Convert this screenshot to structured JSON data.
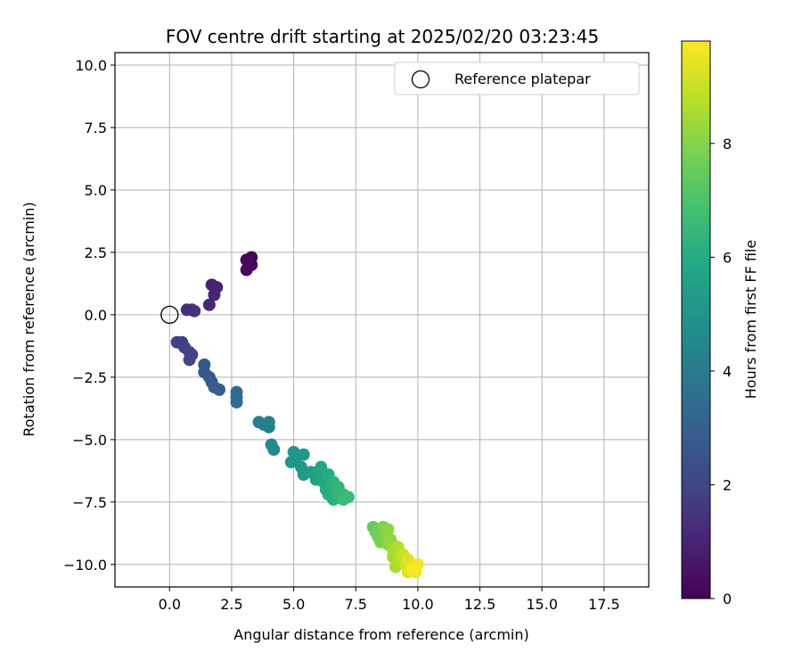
{
  "chart_data": {
    "type": "scatter",
    "title": "FOV centre drift starting at 2025/02/20 03:23:45",
    "xlabel": "Angular distance from reference (arcmin)",
    "ylabel": "Rotation from reference (arcmin)",
    "xlim": [
      -2.2,
      19.3
    ],
    "ylim": [
      -10.9,
      10.5
    ],
    "xticks": [
      0.0,
      2.5,
      5.0,
      7.5,
      10.0,
      12.5,
      15.0,
      17.5
    ],
    "xtick_labels": [
      "0.0",
      "2.5",
      "5.0",
      "7.5",
      "10.0",
      "12.5",
      "15.0",
      "17.5"
    ],
    "yticks": [
      10.0,
      7.5,
      5.0,
      2.5,
      0.0,
      -2.5,
      -5.0,
      -7.5,
      -10.0
    ],
    "ytick_labels": [
      "10.0",
      "7.5",
      "5.0",
      "2.5",
      "0.0",
      "−2.5",
      "−5.0",
      "−7.5",
      "−10.0"
    ],
    "grid": true,
    "legend": {
      "position": "top-right",
      "entries": [
        "Reference platepar"
      ]
    },
    "reference_point": {
      "x": 0.0,
      "y": 0.0
    },
    "colorbar": {
      "label": "Hours from first FF file",
      "colormap": "viridis",
      "range": [
        0,
        9.8
      ],
      "ticks": [
        0,
        2,
        4,
        6,
        8
      ],
      "tick_labels": [
        "0",
        "2",
        "4",
        "6",
        "8"
      ]
    },
    "points": [
      {
        "x": 3.1,
        "y": 2.2,
        "t": 0.1
      },
      {
        "x": 3.3,
        "y": 2.3,
        "t": 0.15
      },
      {
        "x": 3.3,
        "y": 2.0,
        "t": 0.2
      },
      {
        "x": 3.1,
        "y": 1.8,
        "t": 0.25
      },
      {
        "x": 3.2,
        "y": 2.1,
        "t": 0.3
      },
      {
        "x": 1.7,
        "y": 1.2,
        "t": 0.9
      },
      {
        "x": 1.9,
        "y": 1.1,
        "t": 0.95
      },
      {
        "x": 1.8,
        "y": 0.8,
        "t": 1.0
      },
      {
        "x": 1.6,
        "y": 0.4,
        "t": 1.05
      },
      {
        "x": 0.7,
        "y": 0.2,
        "t": 1.3
      },
      {
        "x": 0.9,
        "y": 0.2,
        "t": 1.35
      },
      {
        "x": 1.0,
        "y": 0.15,
        "t": 1.4
      },
      {
        "x": 0.3,
        "y": -1.1,
        "t": 1.8
      },
      {
        "x": 0.5,
        "y": -1.1,
        "t": 1.85
      },
      {
        "x": 0.6,
        "y": -1.3,
        "t": 1.9
      },
      {
        "x": 0.8,
        "y": -1.5,
        "t": 1.95
      },
      {
        "x": 0.9,
        "y": -1.6,
        "t": 2.0
      },
      {
        "x": 0.8,
        "y": -1.8,
        "t": 2.05
      },
      {
        "x": 1.4,
        "y": -2.0,
        "t": 2.6
      },
      {
        "x": 1.4,
        "y": -2.3,
        "t": 2.7
      },
      {
        "x": 1.6,
        "y": -2.5,
        "t": 2.75
      },
      {
        "x": 1.7,
        "y": -2.7,
        "t": 2.8
      },
      {
        "x": 1.8,
        "y": -2.9,
        "t": 2.85
      },
      {
        "x": 2.0,
        "y": -3.0,
        "t": 2.9
      },
      {
        "x": 2.7,
        "y": -3.1,
        "t": 3.4
      },
      {
        "x": 2.7,
        "y": -3.3,
        "t": 3.45
      },
      {
        "x": 2.7,
        "y": -3.5,
        "t": 3.5
      },
      {
        "x": 3.6,
        "y": -4.3,
        "t": 4.1
      },
      {
        "x": 3.8,
        "y": -4.4,
        "t": 4.15
      },
      {
        "x": 4.0,
        "y": -4.3,
        "t": 4.2
      },
      {
        "x": 4.0,
        "y": -4.5,
        "t": 4.25
      },
      {
        "x": 4.1,
        "y": -5.2,
        "t": 4.6
      },
      {
        "x": 4.2,
        "y": -5.4,
        "t": 4.65
      },
      {
        "x": 4.9,
        "y": -5.9,
        "t": 5.0
      },
      {
        "x": 5.0,
        "y": -5.5,
        "t": 5.05
      },
      {
        "x": 5.1,
        "y": -5.7,
        "t": 5.1
      },
      {
        "x": 5.3,
        "y": -6.1,
        "t": 5.2
      },
      {
        "x": 5.4,
        "y": -5.6,
        "t": 5.25
      },
      {
        "x": 5.4,
        "y": -6.4,
        "t": 5.3
      },
      {
        "x": 5.7,
        "y": -6.3,
        "t": 5.5
      },
      {
        "x": 5.9,
        "y": -6.6,
        "t": 5.6
      },
      {
        "x": 6.0,
        "y": -6.3,
        "t": 5.7
      },
      {
        "x": 6.1,
        "y": -6.1,
        "t": 5.8
      },
      {
        "x": 6.2,
        "y": -6.7,
        "t": 5.9
      },
      {
        "x": 6.3,
        "y": -7.0,
        "t": 6.0
      },
      {
        "x": 6.4,
        "y": -6.4,
        "t": 6.05
      },
      {
        "x": 6.4,
        "y": -7.2,
        "t": 6.1
      },
      {
        "x": 6.5,
        "y": -6.9,
        "t": 6.15
      },
      {
        "x": 6.6,
        "y": -7.4,
        "t": 6.2
      },
      {
        "x": 6.6,
        "y": -6.7,
        "t": 6.25
      },
      {
        "x": 6.7,
        "y": -7.0,
        "t": 6.3
      },
      {
        "x": 6.8,
        "y": -7.3,
        "t": 6.4
      },
      {
        "x": 6.8,
        "y": -6.9,
        "t": 6.45
      },
      {
        "x": 7.0,
        "y": -7.2,
        "t": 6.5
      },
      {
        "x": 7.0,
        "y": -7.4,
        "t": 6.6
      },
      {
        "x": 7.2,
        "y": -7.3,
        "t": 6.7
      },
      {
        "x": 8.2,
        "y": -8.5,
        "t": 7.5
      },
      {
        "x": 8.3,
        "y": -8.7,
        "t": 7.6
      },
      {
        "x": 8.4,
        "y": -8.9,
        "t": 7.7
      },
      {
        "x": 8.5,
        "y": -9.1,
        "t": 7.8
      },
      {
        "x": 8.6,
        "y": -8.5,
        "t": 7.9
      },
      {
        "x": 8.7,
        "y": -8.8,
        "t": 8.0
      },
      {
        "x": 8.8,
        "y": -9.2,
        "t": 8.1
      },
      {
        "x": 8.8,
        "y": -8.6,
        "t": 8.15
      },
      {
        "x": 8.9,
        "y": -9.0,
        "t": 8.2
      },
      {
        "x": 9.0,
        "y": -9.4,
        "t": 8.4
      },
      {
        "x": 9.0,
        "y": -9.7,
        "t": 8.5
      },
      {
        "x": 9.1,
        "y": -10.1,
        "t": 8.6
      },
      {
        "x": 9.2,
        "y": -9.3,
        "t": 8.7
      },
      {
        "x": 9.3,
        "y": -9.8,
        "t": 8.8
      },
      {
        "x": 9.4,
        "y": -9.6,
        "t": 9.0
      },
      {
        "x": 9.5,
        "y": -10.0,
        "t": 9.1
      },
      {
        "x": 9.6,
        "y": -10.3,
        "t": 9.2
      },
      {
        "x": 9.6,
        "y": -9.8,
        "t": 9.3
      },
      {
        "x": 9.7,
        "y": -10.2,
        "t": 9.4
      },
      {
        "x": 9.8,
        "y": -10.1,
        "t": 9.5
      },
      {
        "x": 9.9,
        "y": -10.3,
        "t": 9.6
      },
      {
        "x": 10.0,
        "y": -10.0,
        "t": 9.7
      },
      {
        "x": 9.8,
        "y": -10.2,
        "t": 9.75
      }
    ]
  }
}
